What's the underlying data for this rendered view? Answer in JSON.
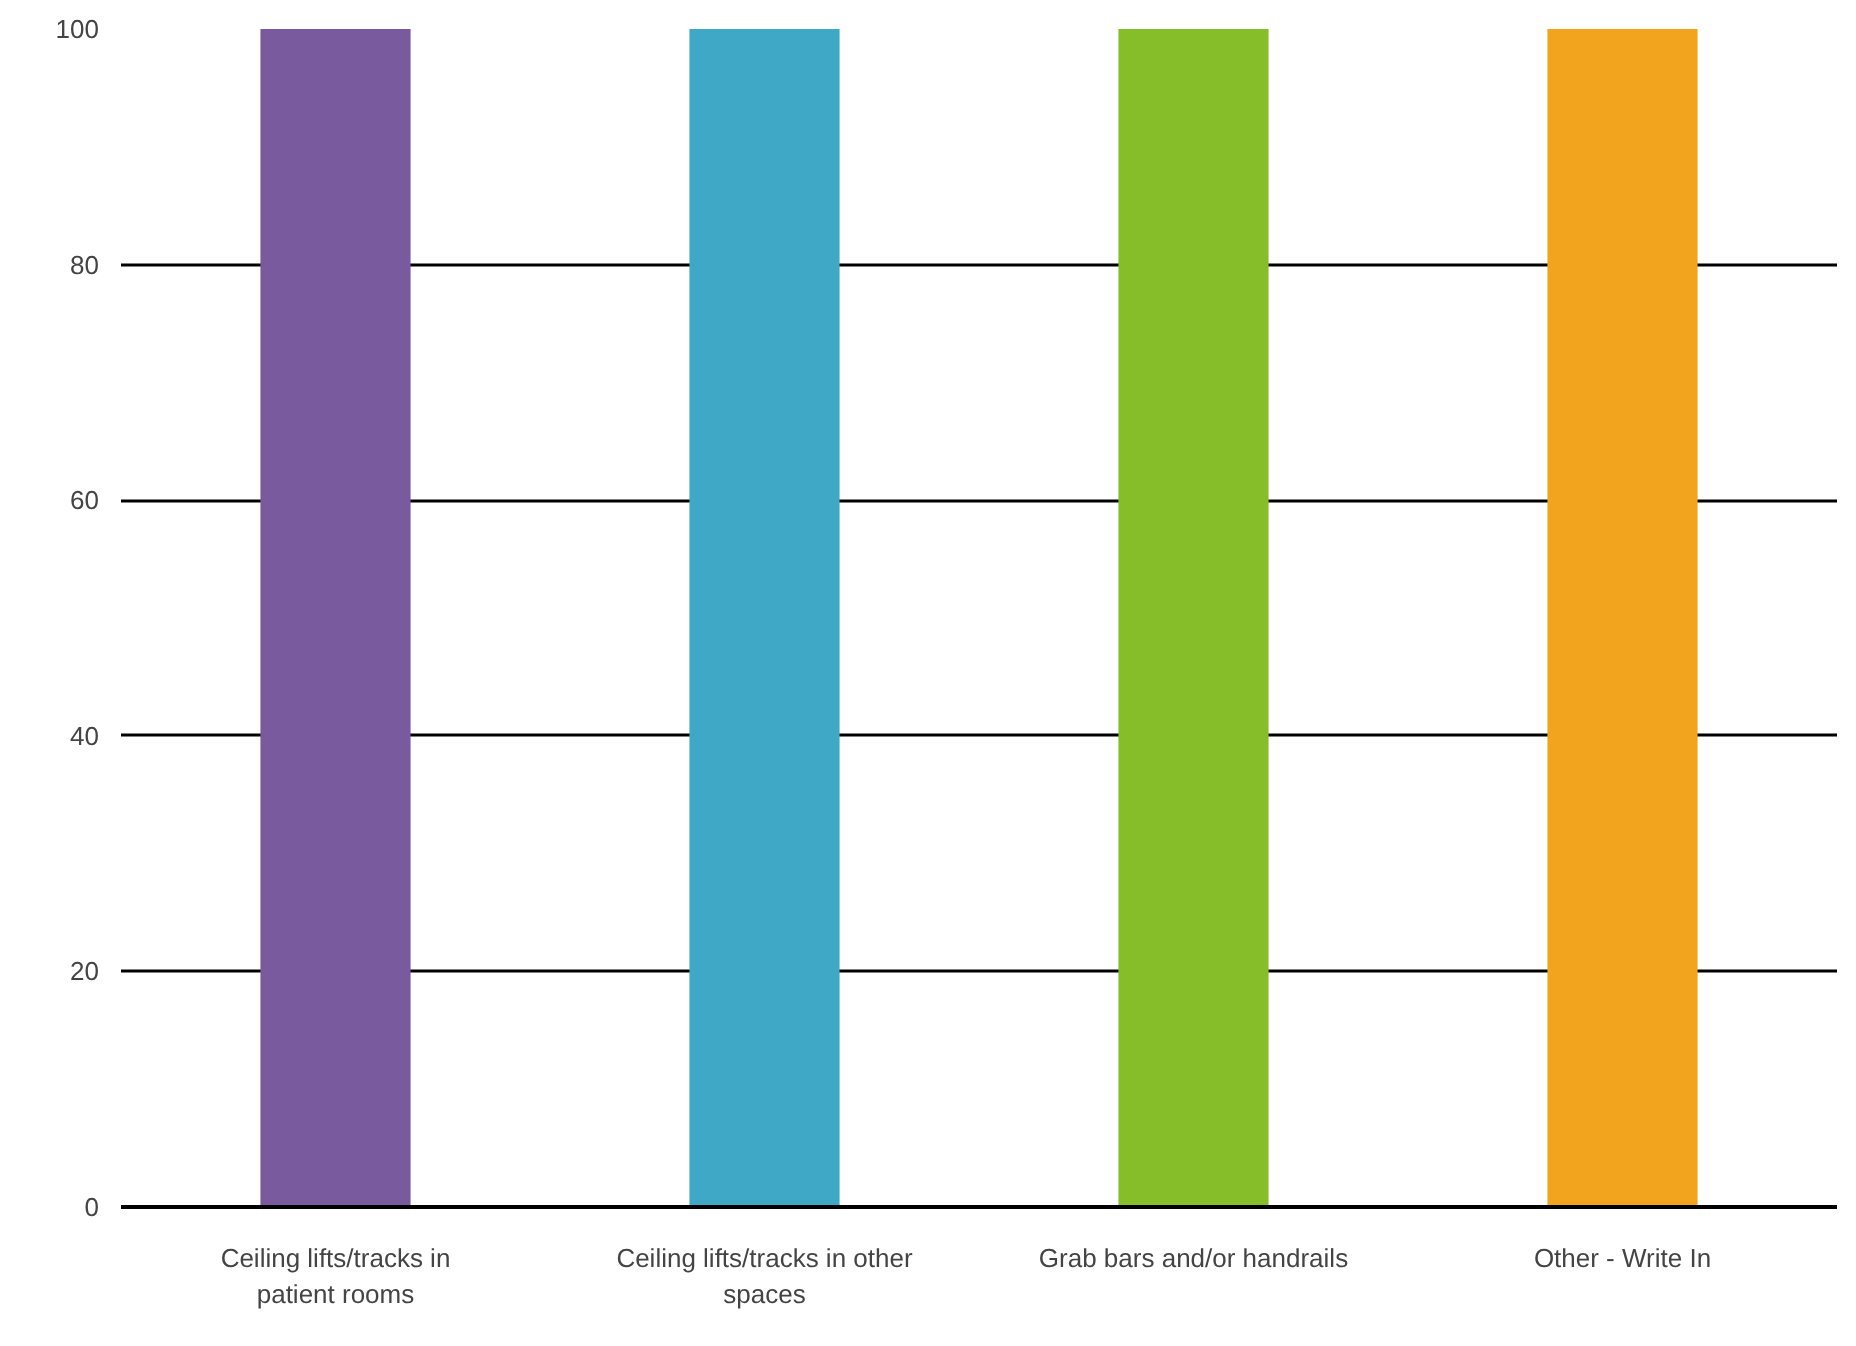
{
  "chart_data": {
    "type": "bar",
    "categories": [
      "Ceiling lifts/tracks in patient rooms",
      "Ceiling lifts/tracks in other spaces",
      "Grab bars and/or handrails",
      "Other - Write In"
    ],
    "values": [
      100,
      100,
      100,
      100
    ],
    "colors": [
      "#7a5a9e",
      "#3fa8c6",
      "#86be2a",
      "#f2a41e"
    ],
    "ylim": [
      0,
      100
    ],
    "yticks": [
      0,
      20,
      40,
      60,
      80,
      100
    ],
    "grid": "y"
  }
}
